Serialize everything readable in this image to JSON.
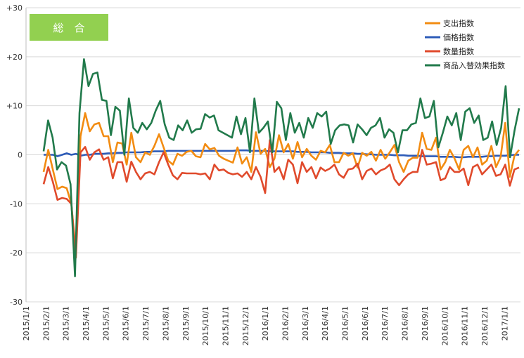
{
  "badge_label": "総　合",
  "chart_data": {
    "type": "line",
    "ylim": [
      -30,
      30
    ],
    "y_ticks": [
      "+30",
      "+20",
      "+10",
      "0",
      "-10",
      "-20",
      "-30"
    ],
    "y_tick_values": [
      30,
      20,
      10,
      0,
      -10,
      -20,
      -30
    ],
    "x_ticks": [
      "2015/1/1",
      "2015/2/1",
      "2015/3/1",
      "2015/4/1",
      "2015/5/1",
      "2015/6/1",
      "2015/7/1",
      "2015/8/1",
      "2015/9/1",
      "2015/10/1",
      "2015/11/1",
      "2015/12/1",
      "2016/1/1",
      "2016/2/1",
      "2016/3/1",
      "2016/4/1",
      "2016/5/1",
      "2016/6/1",
      "2016/7/1",
      "2016/8/1",
      "2016/9/1",
      "2016/10/1",
      "2016/11/1",
      "2016/12/1",
      "2017/1/1"
    ],
    "grid": "horizontal",
    "legend_position": "top-right",
    "series": [
      {
        "name": "支出指数",
        "color": "#f28c12",
        "values": [
          -3.5,
          1,
          -3,
          -7,
          -6.5,
          -6.8,
          -10,
          -20,
          3.8,
          8.5,
          4.8,
          6.2,
          6.5,
          3.8,
          3.8,
          -1.5,
          2.5,
          2.3,
          -2,
          4.5,
          -0.5,
          -1.5,
          0.5,
          0,
          1.8,
          4.2,
          1.5,
          -1.2,
          -2,
          0.2,
          -0.2,
          0.6,
          0.8,
          -0.3,
          -0.5,
          2.2,
          1.1,
          1.4,
          -0.2,
          -0.8,
          -1.2,
          -1.6,
          1.5,
          -1.8,
          -0.5,
          -3.5,
          4.6,
          0.2,
          1.2,
          -2.5,
          -0.8,
          4,
          0.5,
          2.2,
          -0.8,
          2.6,
          -0.5,
          1.2,
          -0.2,
          -1,
          0.8,
          0.5,
          2,
          -1.5,
          -1.5,
          0.4,
          -0.2,
          0.3,
          -2.6,
          0.4,
          -0.2,
          0.6,
          -1.2,
          1,
          -0.8,
          0.5,
          2,
          -1.5,
          -3.5,
          -1.2,
          -0.6,
          -0.6,
          4.5,
          1.2,
          1,
          3.5,
          -3,
          -1.5,
          1,
          -0.7,
          -3,
          1,
          1.8,
          -0.5,
          1.5,
          -2,
          -1.2,
          1.8,
          -2.5,
          -0.5,
          6.5,
          -4.5,
          -0.2,
          1
        ],
        "bind": "legend.0"
      },
      {
        "name": "価格指数",
        "color": "#2e5cb8",
        "values": [
          0,
          0,
          0,
          -0.3,
          0,
          0.3,
          0,
          0.2,
          -0.2,
          0,
          0,
          0.2,
          0.2,
          0.2,
          0.3,
          0.3,
          0.4,
          0.4,
          0.5,
          0.5,
          0.5,
          0.5,
          0.6,
          0.6,
          0.7,
          0.7,
          0.7,
          0.8,
          0.8,
          0.8,
          0.8,
          0.8,
          0.8,
          0.8,
          0.8,
          0.8,
          0.8,
          0.8,
          0.8,
          0.8,
          0.8,
          0.8,
          0.9,
          0.9,
          0.9,
          0.8,
          0.8,
          0.8,
          0.8,
          0.7,
          0.7,
          0.7,
          0.7,
          0.7,
          0.7,
          0.6,
          0.6,
          0.6,
          0.5,
          0.5,
          0.5,
          0.5,
          0.4,
          0.4,
          0.4,
          0.3,
          0.3,
          0.3,
          0.2,
          0.2,
          0.1,
          0.1,
          0,
          0,
          0,
          0,
          -0.1,
          -0.1,
          -0.1,
          -0.2,
          -0.2,
          -0.2,
          -0.3,
          -0.3,
          -0.3,
          -0.3,
          -0.4,
          -0.4,
          -0.4,
          -0.4,
          -0.5,
          -0.5,
          -0.4,
          -0.4,
          -0.4,
          -0.4,
          -0.3,
          -0.3,
          -0.2,
          -0.2,
          -0.2,
          -0.1,
          0,
          0
        ],
        "bind": "legend.1"
      },
      {
        "name": "数量指数",
        "color": "#e04a2c",
        "values": [
          -6,
          -2.5,
          -5.5,
          -9.2,
          -8.8,
          -9,
          -10,
          -21,
          0.5,
          1.6,
          -1,
          0.5,
          1.1,
          -1,
          -0.5,
          -4.8,
          -1.5,
          -1.5,
          -5.5,
          -1.4,
          -3.5,
          -5,
          -3.8,
          -3.5,
          -4,
          -1.5,
          0.5,
          -2,
          -4.2,
          -5,
          -3.7,
          -3.8,
          -3.8,
          -3.8,
          -4,
          -3.8,
          -5,
          -2,
          -3.2,
          -3,
          -3.7,
          -4,
          -3.8,
          -4.5,
          -3.5,
          -5,
          -2.5,
          -4.5,
          -7.8,
          3,
          -3.5,
          -2.5,
          -5,
          -1,
          -2,
          -5.8,
          -1.5,
          -3.5,
          -2.5,
          -4.8,
          -2.6,
          -3.3,
          -2.8,
          -2,
          -4,
          -4.7,
          -3,
          -2.8,
          -1.8,
          -5,
          -3.3,
          -2.8,
          -4,
          -3.2,
          -2.8,
          -2,
          -5,
          -6.2,
          -5,
          -4,
          -3.5,
          -3.5,
          1,
          -2,
          -1.8,
          -1.5,
          -5.2,
          -4.8,
          -2.5,
          -3.5,
          -3.5,
          -2.8,
          -6.2,
          -2.5,
          -2,
          -4,
          -3,
          -2,
          -4.3,
          -4,
          -2,
          -6.3,
          -3,
          -2.6
        ],
        "bind": "legend.2"
      },
      {
        "name": "商品入替効果指数",
        "color": "#217a4b",
        "values": [
          0.7,
          7,
          3.5,
          -3,
          -1.5,
          -2.2,
          -6,
          -24.8,
          8.5,
          19.5,
          14,
          16.5,
          16.8,
          11.2,
          11,
          4,
          9.8,
          9,
          0,
          11.5,
          5.5,
          4.5,
          6.5,
          5.2,
          6.5,
          9,
          11,
          6.2,
          3.5,
          3,
          6,
          5,
          7,
          4.5,
          5.2,
          5.3,
          8.3,
          7.6,
          8,
          5,
          4.5,
          4,
          3.5,
          7.8,
          4.2,
          7.5,
          0.5,
          11.5,
          4.5,
          5.5,
          6.8,
          0.5,
          10.8,
          9.5,
          3,
          8.5,
          4.5,
          6.5,
          3.5,
          7.5,
          5.5,
          8.5,
          7.8,
          8.8,
          2.2,
          5,
          6,
          6.2,
          6,
          2.5,
          6.2,
          5.2,
          4,
          5.5,
          6,
          7.5,
          3.5,
          5.2,
          4.5,
          0.5,
          5,
          5,
          6.2,
          6.5,
          11.5,
          7.5,
          7.8,
          11,
          1.5,
          4.5,
          7.8,
          6,
          8.5,
          3,
          8.8,
          9.5,
          6.5,
          8,
          3,
          3.5,
          6.8,
          2,
          5.5,
          14,
          -0.5,
          5,
          9.5
        ],
        "bind": "legend.3"
      }
    ]
  },
  "legend": [
    "支出指数",
    "価格指数",
    "数量指数",
    "商品入替効果指数"
  ]
}
